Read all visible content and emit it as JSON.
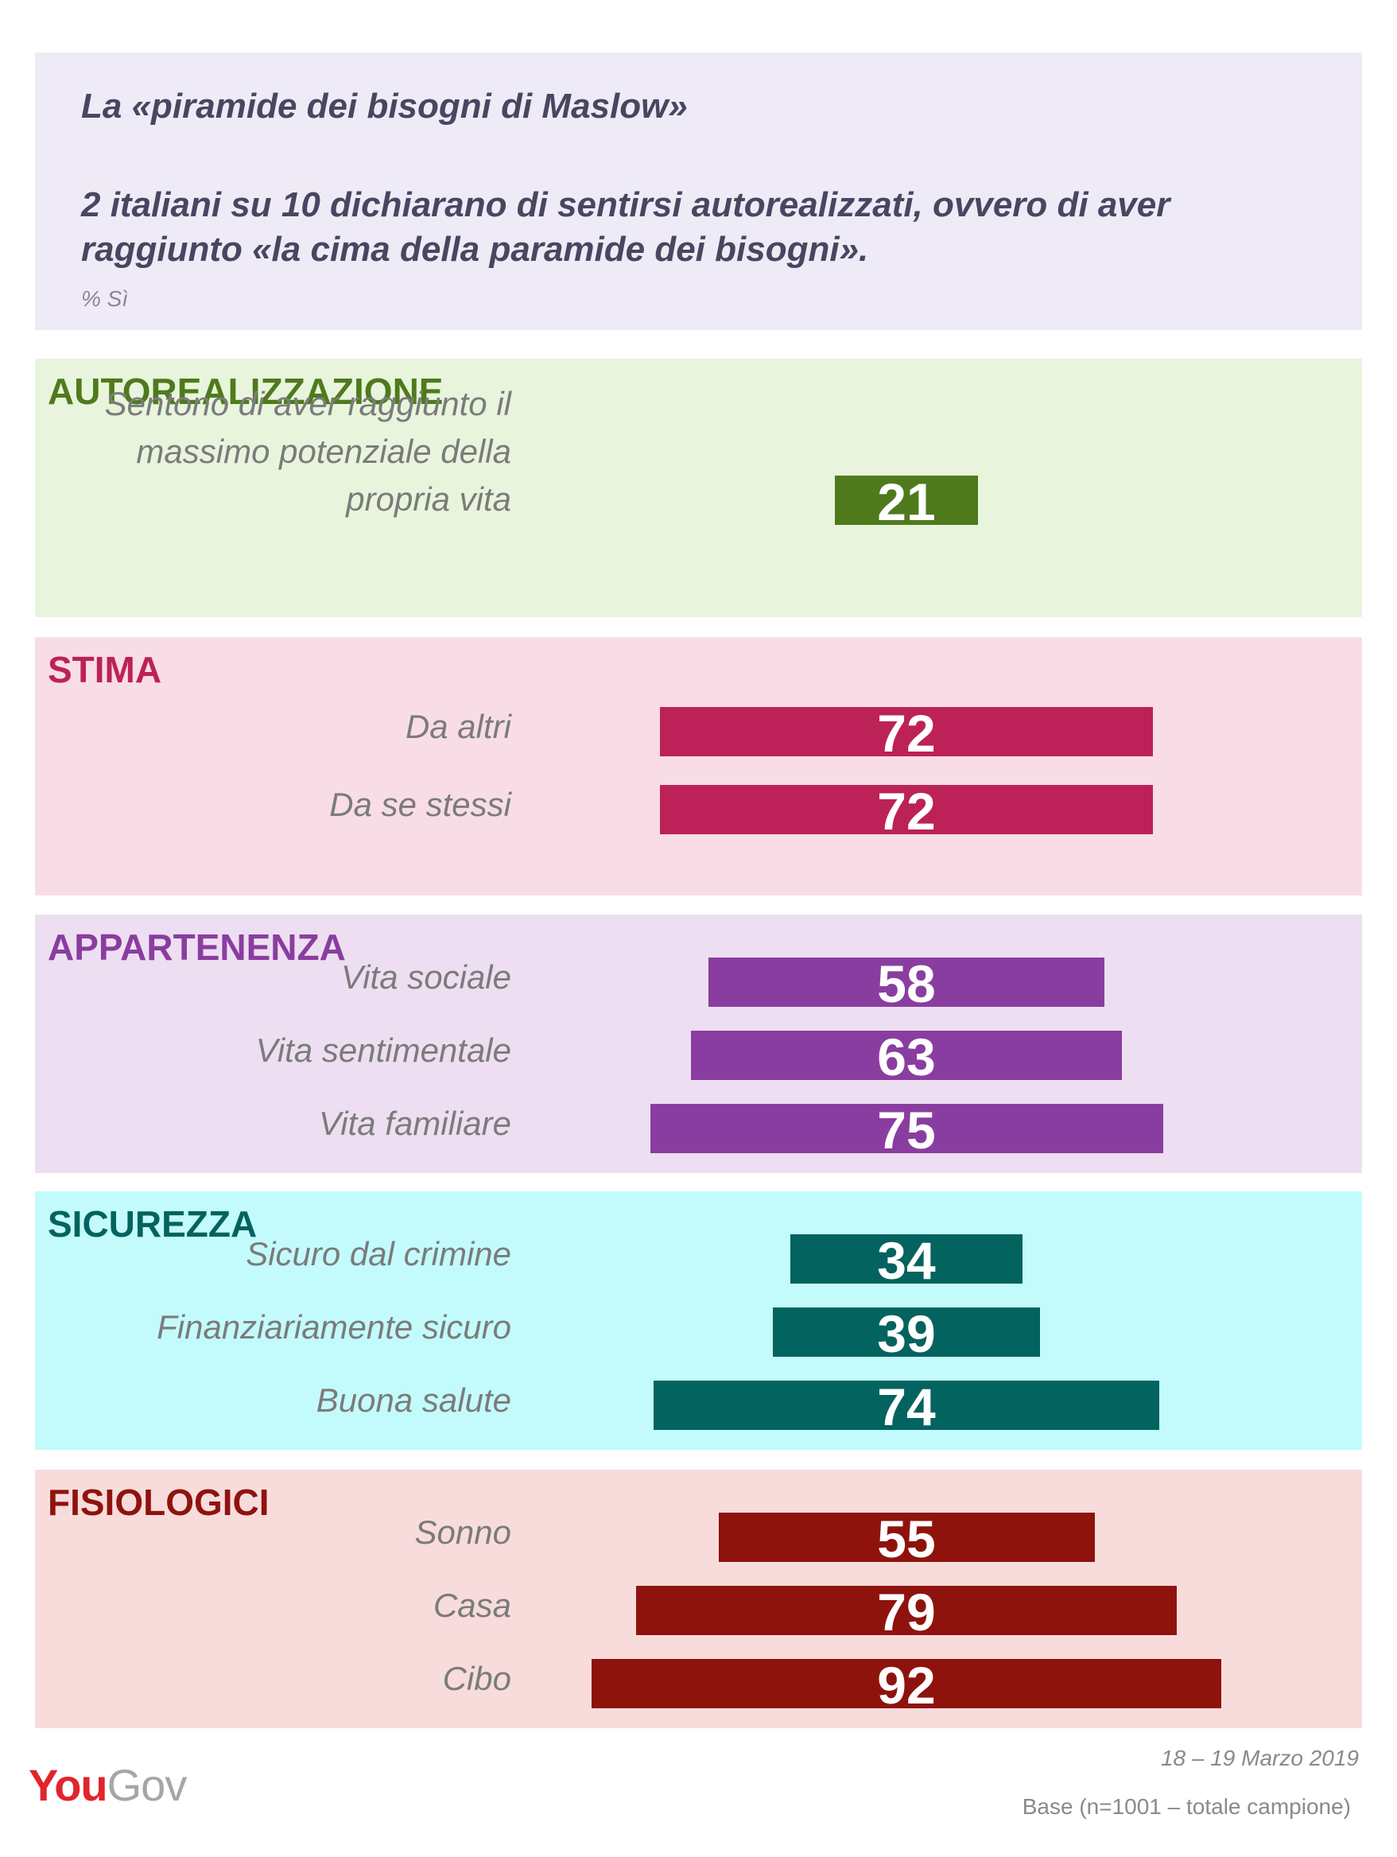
{
  "header": {
    "title": "La «piramide dei bisogni di Maslow»",
    "subtitle": "2 italiani su 10 dichiarano di sentirsi autorealizzati, ovvero di aver raggiunto «la cima della paramide dei bisogni».",
    "unit": "% Sì"
  },
  "chart_data": {
    "type": "bar",
    "orientation": "horizontal",
    "centered": true,
    "xlim": [
      0,
      100
    ],
    "groups": [
      {
        "name": "AUTOREALIZZAZIONE",
        "color": "#4f7a1c",
        "bg": "#e8f5dc",
        "categories": [
          "Sentono di aver raggiunto il massimo potenziale della propria vita"
        ],
        "values": [
          21
        ]
      },
      {
        "name": "STIMA",
        "color": "#bc2257",
        "bg": "#f8dde7",
        "categories": [
          "Da altri",
          "Da se stessi"
        ],
        "values": [
          72,
          72
        ]
      },
      {
        "name": "APPARTENENZA",
        "color": "#8a3da0",
        "bg": "#eddff1",
        "categories": [
          "Vita sociale",
          "Vita sentimentale",
          "Vita familiare"
        ],
        "values": [
          58,
          63,
          75
        ]
      },
      {
        "name": "SICUREZZA",
        "color": "#03635f",
        "bg": "#c3fbfc",
        "categories": [
          "Sicuro dal crimine",
          "Finanziariamente sicuro",
          "Buona salute"
        ],
        "values": [
          34,
          39,
          74
        ]
      },
      {
        "name": "FISIOLOGICI",
        "color": "#8e130d",
        "bg": "#f8dcdc",
        "categories": [
          "Sonno",
          "Casa",
          "Cibo"
        ],
        "values": [
          55,
          79,
          92
        ]
      }
    ]
  },
  "footer": {
    "date": "18 – 19 Marzo 2019",
    "base": "Base (n=1001 – totale campione)",
    "logo_you": "You",
    "logo_gov": "Gov"
  }
}
